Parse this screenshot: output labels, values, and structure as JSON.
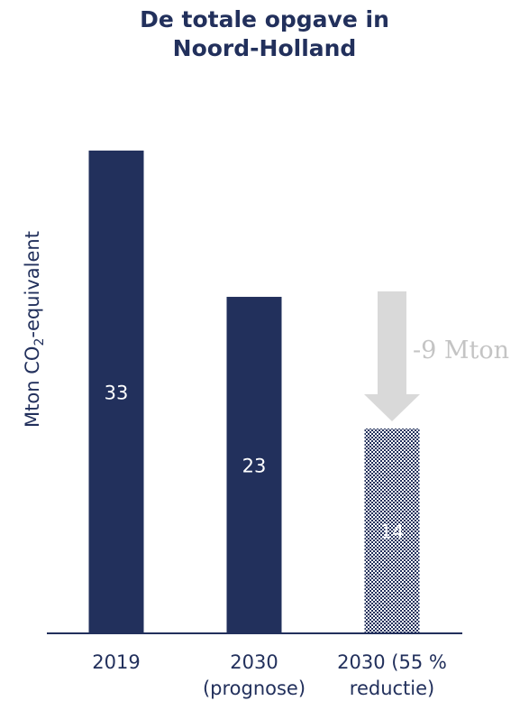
{
  "chart_data": {
    "type": "bar",
    "title_lines": [
      "De totale opgave in",
      "Noord-Holland"
    ],
    "ylabel_main": "Mton CO",
    "ylabel_sub": "2",
    "ylabel_rest": "-equivalent",
    "ylim": [
      0,
      37
    ],
    "categories": [
      {
        "lines": [
          "2019"
        ]
      },
      {
        "lines": [
          "2030",
          "(prognose)"
        ]
      },
      {
        "lines": [
          "2030 (55 %",
          "reductie)"
        ]
      }
    ],
    "values": [
      33,
      23,
      14
    ],
    "value_labels": [
      "33",
      "23",
      "14"
    ],
    "bar_styles": [
      "solid",
      "solid",
      "hatched"
    ],
    "annotation": "-9 Mton",
    "colors": {
      "bar": "#22305c",
      "axis": "#22305c",
      "annotation": "#c4c4c4",
      "arrow": "#d9d9d9"
    }
  }
}
